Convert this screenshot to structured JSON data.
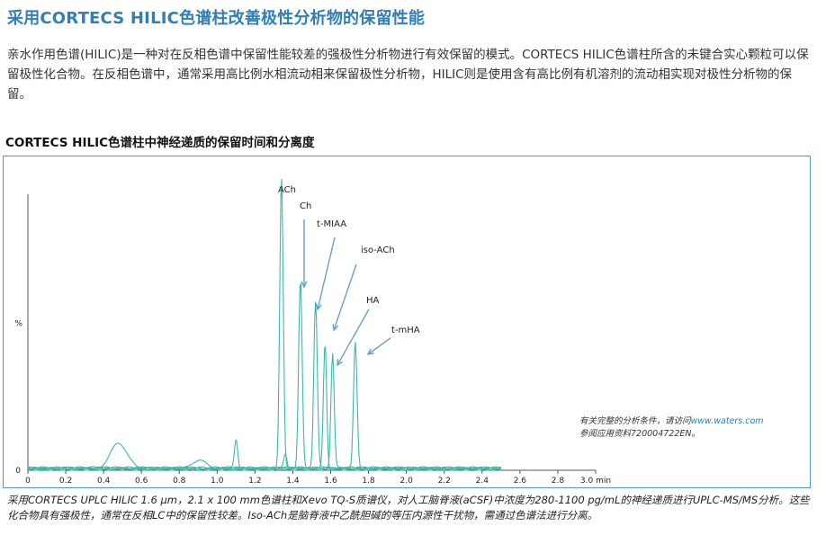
{
  "header": {
    "title": "采用CORTECS HILIC色谱柱改善极性分析物的保留性能"
  },
  "intro": {
    "text": "亲水作用色谱(HILIC)是一种对在反相色谱中保留性能较差的强极性分析物进行有效保留的模式。CORTECS HILIC色谱柱所含的未键合实心颗粒可以保留极性化合物。在反相色谱中，通常采用高比例水相流动相来保留极性分析物，HILIC则是使用含有高比例有机溶剂的流动相实现对极性分析物的保留。"
  },
  "section": {
    "heading": "CORTECS HILIC色谱柱中神经递质的保留时间和分离度"
  },
  "chart_data": {
    "type": "line",
    "title": "",
    "xlabel": "min",
    "ylabel": "%",
    "xlim": [
      0,
      3.0
    ],
    "ylim": [
      0,
      100
    ],
    "x_ticks": [
      "0",
      "0.2",
      "0.4",
      "0.6",
      "0.8",
      "1.0",
      "1.2",
      "1.4",
      "1.6",
      "1.8",
      "2.0",
      "2.2",
      "2.4",
      "2.6",
      "2.8",
      "3.0"
    ],
    "x_tick_values": [
      0,
      0.2,
      0.4,
      0.6,
      0.8,
      1.0,
      1.2,
      1.4,
      1.6,
      1.8,
      2.0,
      2.2,
      2.4,
      2.6,
      2.8,
      3.0
    ],
    "x_unit_label": "3.0 min",
    "y_ticks": [
      "0",
      "%"
    ],
    "grid": false,
    "series": [
      {
        "name": "ACh",
        "peak_x": 1.34,
        "peak_y": 100,
        "width": 0.013
      },
      {
        "name": "Ch",
        "peak_x": 1.44,
        "peak_y": 65,
        "width": 0.013
      },
      {
        "name": "t-MIAA",
        "peak_x": 1.52,
        "peak_y": 57,
        "width": 0.013
      },
      {
        "name": "iso-ACh",
        "peak_x": 1.57,
        "peak_y": 43,
        "width": 0.012
      },
      {
        "name": "HA",
        "peak_x": 1.61,
        "peak_y": 39,
        "width": 0.012
      },
      {
        "name": "t-mHA",
        "peak_x": 1.73,
        "peak_y": 43,
        "width": 0.013
      }
    ],
    "background_features": [
      {
        "x": 0.48,
        "y": 9,
        "width": 0.06
      },
      {
        "x": 1.1,
        "y": 10,
        "width": 0.012
      },
      {
        "x": 0.9,
        "y": 3,
        "width": 0.05
      },
      {
        "x": 1.36,
        "y": 5,
        "width": 0.012
      }
    ],
    "peak_labels": [
      "ACh",
      "Ch",
      "t-MIAA",
      "iso-ACh",
      "HA",
      "t-mHA"
    ],
    "line_color": "#3bb8a8"
  },
  "note": {
    "line1_prefix": "有关完整的分析条件，请访问",
    "line1_link": "www.waters.com",
    "line2": "参阅应用资料720004722EN。"
  },
  "caption": {
    "text": "采用CORTECS UPLC HILIC 1.6 μm，2.1 x 100 mm色谱柱和Xevo TQ-S质谱仪，对人工脑脊液(aCSF)中浓度为280-1100 pg/mL的神经递质进行UPLC-MS/MS分析。这些化合物具有强极性，通常在反相LC中的保留性较差。Iso-ACh是脑脊液中乙酰胆碱的等压内源性干扰物，需通过色谱法进行分离。"
  }
}
